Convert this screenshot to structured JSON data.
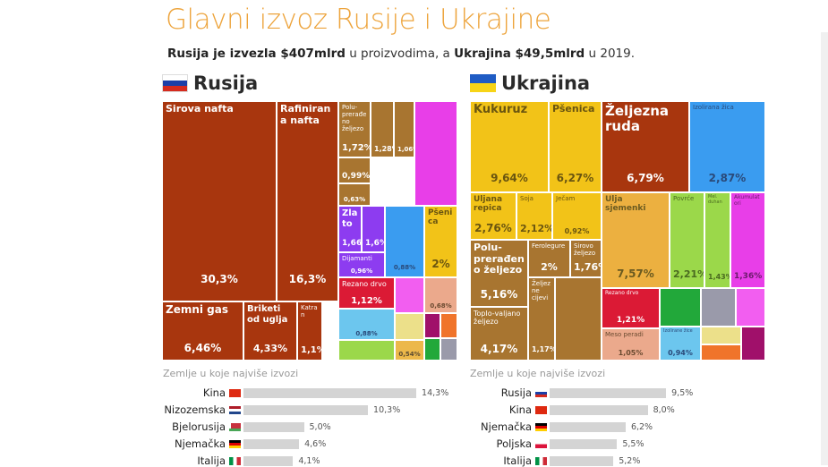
{
  "title": "Glavni izvoz Rusije i Ukrajine",
  "subtitle": {
    "p1": "Rusija je izvezla $407mlrd",
    "p2": " u proizvodima, a ",
    "p3": "Ukrajina $49,5mlrd",
    "p4": " u 2019."
  },
  "colors": {
    "title": "#eda43c",
    "russia_oil": "#a8360e",
    "metals": "#a87530",
    "agri": "#f2c318"
  },
  "chart_data": [
    {
      "type": "treemap",
      "title": "Rusija",
      "flag": "russia-flag",
      "tiles": [
        {
          "label": "Sirova nafta",
          "value": "30,3%",
          "color": "#a8360e"
        },
        {
          "label": "Rafinirana nafta",
          "value": "16,3%",
          "color": "#a8360e"
        },
        {
          "label": "Zemni gas",
          "value": "6,46%",
          "color": "#a8360e"
        },
        {
          "label": "Briketi od ugljа",
          "value": "4,33%",
          "color": "#a8360e"
        },
        {
          "label": "Katran",
          "value": "1,1%",
          "color": "#a8360e"
        },
        {
          "label": "Polu-prerađeno željezo",
          "value": "1,72%",
          "color": "#a87530"
        },
        {
          "label": "",
          "value": "1,28%",
          "color": "#a87530"
        },
        {
          "label": "",
          "value": "1,06%",
          "color": "#a87530"
        },
        {
          "label": "",
          "value": "0,99%",
          "color": "#a87530"
        },
        {
          "label": "",
          "value": "0,63%",
          "color": "#a87530"
        },
        {
          "label": "",
          "value": "",
          "color": "#e83ee8"
        },
        {
          "label": "Zlato",
          "value": "1,66%",
          "color": "#8d3cf0"
        },
        {
          "label": "",
          "value": "1,6%",
          "color": "#8d3cf0"
        },
        {
          "label": "Dijamanti",
          "value": "0,96%",
          "color": "#8d3cf0"
        },
        {
          "label": "",
          "value": "0,88%",
          "color": "#3a9cf0"
        },
        {
          "label": "Pšenica",
          "value": "2%",
          "color": "#f2c318"
        },
        {
          "label": "Rezano drvo",
          "value": "1,12%",
          "color": "#db1a35"
        },
        {
          "label": "",
          "value": "",
          "color": "#f25ef0"
        },
        {
          "label": "",
          "value": "0,68%",
          "color": "#eba98c"
        },
        {
          "label": "",
          "value": "0,88%",
          "color": "#6cc6ee"
        },
        {
          "label": "",
          "value": "",
          "color": "#9bd84a"
        },
        {
          "label": "",
          "value": "",
          "color": "#ece08a"
        },
        {
          "label": "",
          "value": "0,54%",
          "color": "#ecb84a"
        },
        {
          "label": "",
          "value": "",
          "color": "#a0106a"
        },
        {
          "label": "",
          "value": "",
          "color": "#f0742a"
        },
        {
          "label": "",
          "value": "",
          "color": "#22a83a"
        },
        {
          "label": "",
          "value": "",
          "color": "#9a9aaa"
        }
      ],
      "bars_title": "Zemlje u koje najviše izvozi",
      "bars": [
        {
          "country": "Kina",
          "value": 14.3,
          "label": "14,3%",
          "flag": "china"
        },
        {
          "country": "Nizozemska",
          "value": 10.3,
          "label": "10,3%",
          "flag": "netherlands"
        },
        {
          "country": "Bjelorusija",
          "value": 5.0,
          "label": "5,0%",
          "flag": "belarus"
        },
        {
          "country": "Njemačka",
          "value": 4.6,
          "label": "4,6%",
          "flag": "germany"
        },
        {
          "country": "Italija",
          "value": 4.1,
          "label": "4,1%",
          "flag": "italy"
        }
      ]
    },
    {
      "type": "treemap",
      "title": "Ukrajina",
      "flag": "ukraine-flag",
      "tiles": [
        {
          "label": "Kukuruz",
          "value": "9,64%",
          "color": "#f2c318"
        },
        {
          "label": "Pšenica",
          "value": "6,27%",
          "color": "#f2c318"
        },
        {
          "label": "Uljana repica",
          "value": "2,76%",
          "color": "#f2c318"
        },
        {
          "label": "Soja",
          "value": "2,12%",
          "color": "#f2c318"
        },
        {
          "label": "Ječam",
          "value": "0,92%",
          "color": "#f2c318"
        },
        {
          "label": "Polu-prerađeno željezo",
          "value": "5,16%",
          "color": "#a87530"
        },
        {
          "label": "Toplo-valjano željezo",
          "value": "4,17%",
          "color": "#a87530"
        },
        {
          "label": "Ferolegure",
          "value": "2%",
          "color": "#a87530"
        },
        {
          "label": "Sirovo željezo",
          "value": "1,76%",
          "color": "#a87530"
        },
        {
          "label": "Željezne cijevi",
          "value": "1,17%",
          "color": "#a87530"
        },
        {
          "label": "",
          "value": "",
          "color": "#a87530"
        },
        {
          "label": "Željezna ruda",
          "value": "6,79%",
          "color": "#a8360e"
        },
        {
          "label": "Izolirana žica",
          "value": "2,87%",
          "color": "#3a9cf0"
        },
        {
          "label": "Ulja sjemenki",
          "value": "7,57%",
          "color": "#ecb040"
        },
        {
          "label": "Povrće",
          "value": "2,21%",
          "color": "#9bd84a"
        },
        {
          "label": "Mel. duhan",
          "value": "1,43%",
          "color": "#9bd84a"
        },
        {
          "label": "Akumulatori",
          "value": "1,36%",
          "color": "#e83ee8"
        },
        {
          "label": "Rezano drvo",
          "value": "1,21%",
          "color": "#db1a35"
        },
        {
          "label": "Meso peradi",
          "value": "1,05%",
          "color": "#eba98c"
        },
        {
          "label": "",
          "value": "",
          "color": "#22a83a"
        },
        {
          "label": "",
          "value": "",
          "color": "#9a9aaa"
        },
        {
          "label": "",
          "value": "",
          "color": "#f25ef0"
        },
        {
          "label": "Izolirane žice",
          "value": "0,94%",
          "color": "#6cc6ee"
        },
        {
          "label": "",
          "value": "",
          "color": "#ece08a"
        },
        {
          "label": "",
          "value": "",
          "color": "#f0742a"
        },
        {
          "label": "",
          "value": "",
          "color": "#a0106a"
        }
      ],
      "bars_title": "Zemlje u koje najviše izvozi",
      "bars": [
        {
          "country": "Rusija",
          "value": 9.5,
          "label": "9,5%",
          "flag": "russia"
        },
        {
          "country": "Kina",
          "value": 8.0,
          "label": "8,0%",
          "flag": "china"
        },
        {
          "country": "Njemačka",
          "value": 6.2,
          "label": "6,2%",
          "flag": "germany"
        },
        {
          "country": "Poljska",
          "value": 5.5,
          "label": "5,5%",
          "flag": "poland"
        },
        {
          "country": "Italija",
          "value": 5.2,
          "label": "5,2%",
          "flag": "italy"
        }
      ]
    }
  ]
}
